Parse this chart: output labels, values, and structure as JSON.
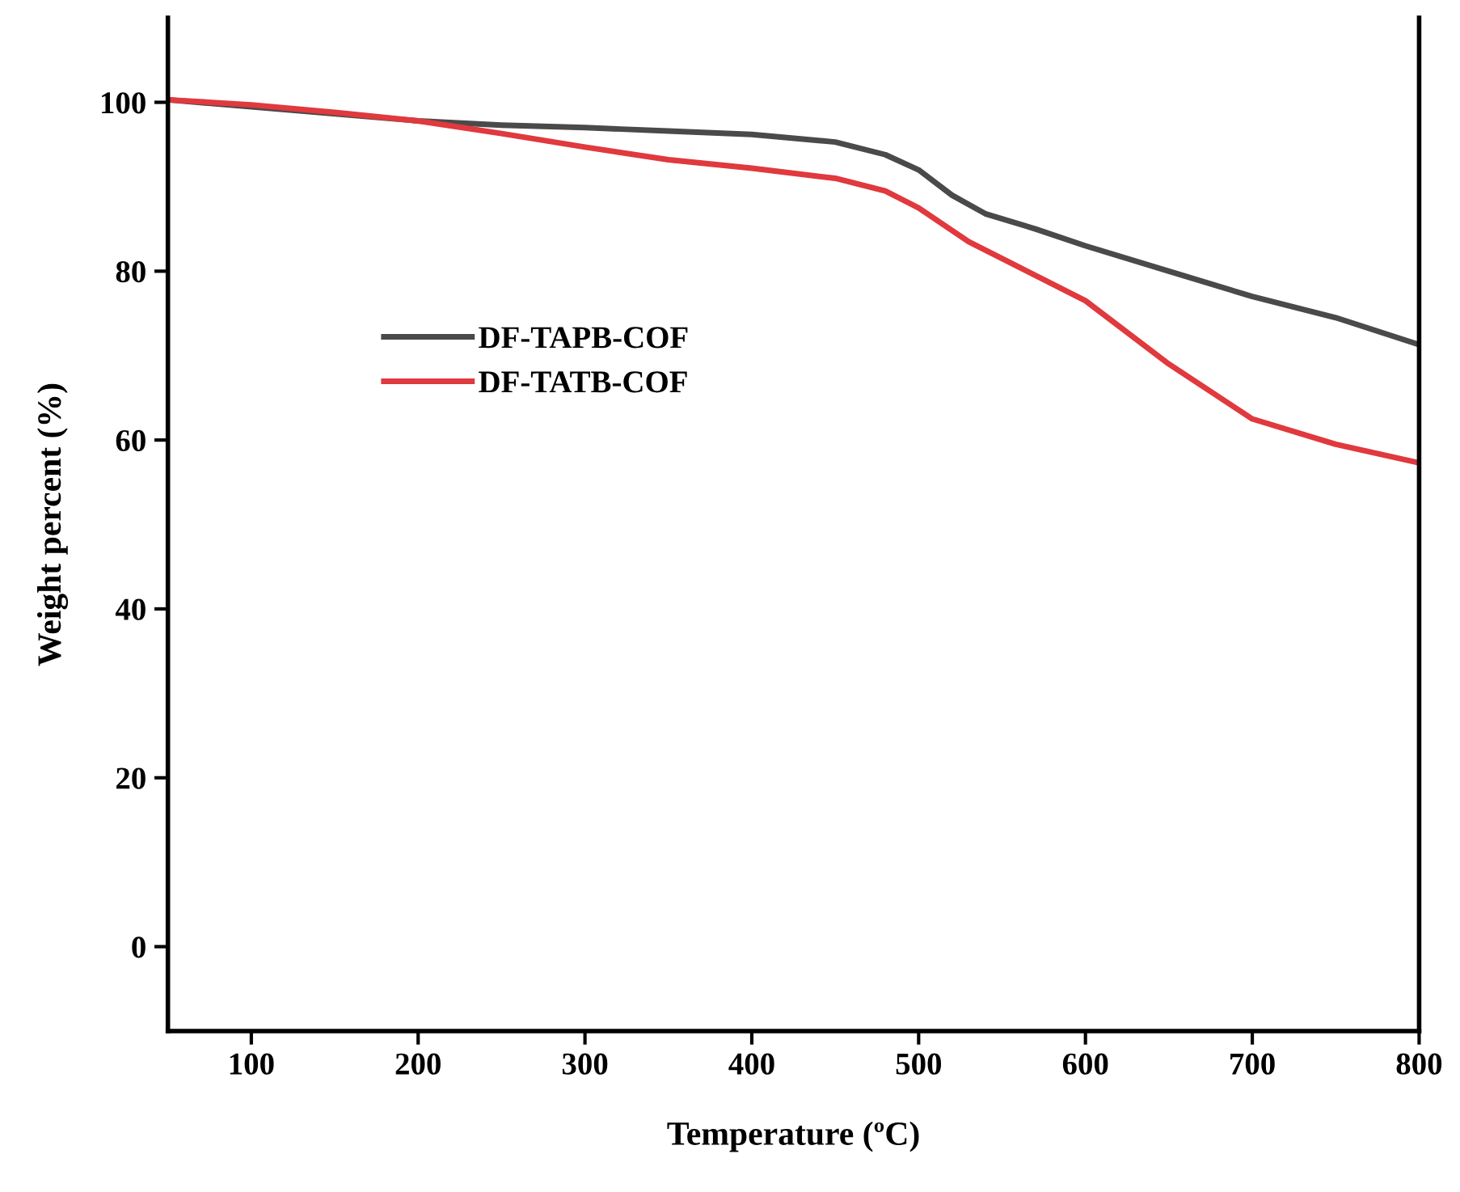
{
  "chart_data": {
    "type": "line",
    "xlabel": "Temperature (ºC)",
    "ylabel": "Weight percent (%)",
    "xlim": [
      50,
      800
    ],
    "xticks": [
      100,
      200,
      300,
      400,
      500,
      600,
      700,
      800
    ],
    "ylim": [
      -10,
      110
    ],
    "yticks": [
      0,
      20,
      40,
      60,
      80,
      100
    ],
    "grid": false,
    "legend": "left",
    "marker": "none",
    "line_style": "solid",
    "series": [
      {
        "name": "DF-TAPB-COF",
        "color": "#4a4a4a",
        "x": [
          50,
          200,
          250,
          300,
          350,
          400,
          450,
          480,
          500,
          520,
          540,
          570,
          600,
          650,
          700,
          750,
          800
        ],
        "values": [
          100.3,
          97.8,
          97.3,
          97.0,
          96.6,
          96.2,
          95.3,
          93.8,
          92.0,
          89.0,
          86.8,
          85.0,
          83.0,
          80.0,
          77.0,
          74.5,
          71.3
        ]
      },
      {
        "name": "DF-TATB-COF",
        "color": "#e0393e",
        "x": [
          50,
          100,
          150,
          200,
          250,
          300,
          350,
          400,
          450,
          480,
          500,
          530,
          560,
          600,
          650,
          700,
          750,
          800
        ],
        "values": [
          100.3,
          99.7,
          98.8,
          97.8,
          96.3,
          94.7,
          93.2,
          92.2,
          91.0,
          89.5,
          87.5,
          83.5,
          80.5,
          76.5,
          69.0,
          62.5,
          59.5,
          57.3
        ]
      }
    ]
  }
}
